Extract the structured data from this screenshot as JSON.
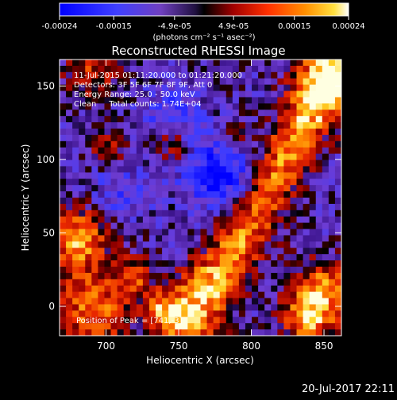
{
  "colorbar": {
    "tick_labels": [
      "-0.00024",
      "-0.00015",
      "-4.9e-05",
      "4.9e-05",
      "0.00015",
      "0.00024"
    ],
    "tick_values": [
      -0.00024,
      -0.00015,
      -4.9e-05,
      4.9e-05,
      0.00015,
      0.00024
    ],
    "range": [
      -0.00024,
      0.00024
    ],
    "units": "(photons cm⁻² s⁻¹ asec⁻²)"
  },
  "chart_data": {
    "type": "heatmap",
    "title": "Reconstructed RHESSI Image",
    "xlabel": "Heliocentric X (arcsec)",
    "ylabel": "Heliocentric Y (arcsec)",
    "xlim": [
      668,
      862
    ],
    "ylim": [
      -20,
      168
    ],
    "xticks": [
      700,
      750,
      800,
      850
    ],
    "yticks": [
      0,
      50,
      100,
      150
    ],
    "annotations": [
      "11-Jul-2015 01:11:20.000 to 01:21:20.000",
      "Detectors: 3F 5F 6F 7F 8F 9F, Att 0",
      "Energy Range: 25.0 - 50.0 keV",
      "Clean     Total counts: 1.74E+04"
    ],
    "peak_label": "Position of Peak = [741,-3]",
    "peak": [
      741,
      -3
    ],
    "colormap": [
      "#0000ff",
      "#3a3aff",
      "#6a3ad8",
      "#4a2a9a",
      "#000000",
      "#8a0000",
      "#e02000",
      "#ff7000",
      "#ffd000",
      "#ffffe0"
    ]
  },
  "footer": {
    "date": "20-Jul-2017 22:11"
  }
}
